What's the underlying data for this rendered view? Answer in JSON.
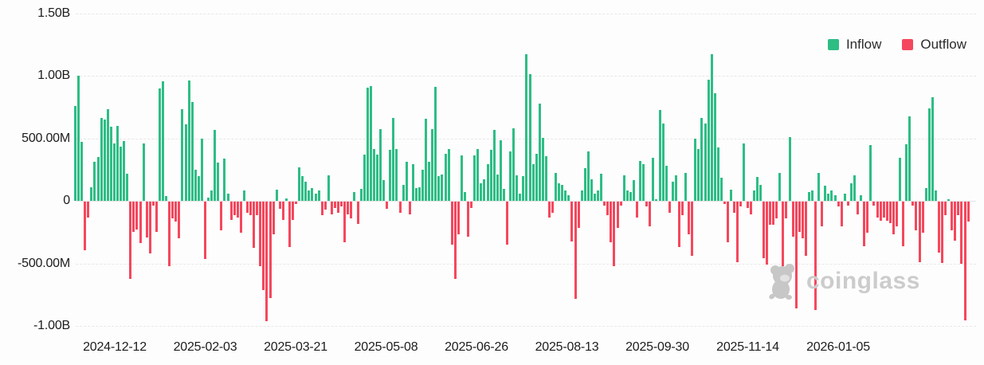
{
  "legend": {
    "items": [
      {
        "label": "Inflow",
        "color": "#2ebd85"
      },
      {
        "label": "Outflow",
        "color": "#f5475d"
      }
    ]
  },
  "watermark": {
    "text": "coinglass"
  },
  "chart_data": {
    "type": "bar",
    "title": "",
    "xlabel": "",
    "ylabel": "",
    "grid": "horizontal dashed",
    "legend_position": "top-right",
    "background": "#fdfdfd",
    "yticks": [
      {
        "label": "1.50B",
        "value": 1500
      },
      {
        "label": "1.00B",
        "value": 1000
      },
      {
        "label": "500.00M",
        "value": 500
      },
      {
        "label": "0",
        "value": 0
      },
      {
        "label": "-500.00M",
        "value": -500
      },
      {
        "label": "-1.00B",
        "value": -1000
      }
    ],
    "ylim": [
      -1050,
      1500
    ],
    "xticks": [
      "2024-12-12",
      "2025-02-03",
      "2025-03-21",
      "2025-05-08",
      "2025-06-26",
      "2025-08-13",
      "2025-09-30",
      "2025-11-14",
      "2026-01-05"
    ],
    "series": [
      {
        "name": "Inflow",
        "color": "#2ebd85",
        "rule": "positive daily values"
      },
      {
        "name": "Outflow",
        "color": "#f5475d",
        "rule": "negative daily values"
      }
    ],
    "values_unit": "USD millions (positive = Inflow, negative = Outflow), one bar per day",
    "values": [
      760,
      1000,
      470,
      -390,
      -130,
      110,
      310,
      350,
      665,
      650,
      730,
      590,
      460,
      600,
      430,
      480,
      215,
      -620,
      -245,
      -220,
      -330,
      460,
      -285,
      -415,
      -30,
      -240,
      900,
      955,
      40,
      -515,
      -135,
      -160,
      -290,
      735,
      610,
      960,
      790,
      250,
      195,
      500,
      -460,
      25,
      80,
      570,
      305,
      -230,
      335,
      55,
      -145,
      -110,
      -130,
      -250,
      80,
      -90,
      -110,
      -370,
      -110,
      -515,
      -705,
      -955,
      -770,
      -260,
      90,
      -60,
      -145,
      20,
      -365,
      -145,
      -20,
      265,
      195,
      150,
      80,
      100,
      60,
      80,
      -110,
      -65,
      205,
      -100,
      -50,
      -90,
      -40,
      -325,
      -100,
      -135,
      70,
      -180,
      95,
      370,
      905,
      915,
      415,
      370,
      575,
      165,
      -55,
      410,
      660,
      415,
      -90,
      130,
      310,
      -100,
      295,
      100,
      110,
      250,
      655,
      310,
      575,
      910,
      195,
      210,
      375,
      415,
      -345,
      -620,
      -260,
      365,
      70,
      -280,
      -50,
      365,
      415,
      140,
      175,
      290,
      405,
      570,
      210,
      485,
      95,
      -345,
      395,
      580,
      205,
      60,
      195,
      1175,
      1010,
      295,
      375,
      780,
      505,
      355,
      -130,
      -90,
      220,
      140,
      125,
      85,
      45,
      -320,
      -780,
      -210,
      85,
      260,
      395,
      175,
      55,
      80,
      215,
      -30,
      -110,
      -325,
      -515,
      -210,
      -30,
      205,
      80,
      70,
      165,
      -125,
      320,
      290,
      -40,
      -200,
      345,
      15,
      725,
      620,
      280,
      -90,
      150,
      205,
      -365,
      -110,
      225,
      -260,
      -430,
      500,
      415,
      660,
      620,
      970,
      1170,
      860,
      425,
      185,
      -20,
      -325,
      90,
      -90,
      -485,
      -40,
      460,
      -50,
      -100,
      80,
      190,
      130,
      -455,
      -505,
      -185,
      -185,
      -135,
      225,
      -515,
      -135,
      510,
      -280,
      -855,
      -240,
      -290,
      -430,
      70,
      80,
      -865,
      220,
      -200,
      120,
      55,
      80,
      45,
      -40,
      -195,
      55,
      -30,
      140,
      205,
      -100,
      45,
      -355,
      -250,
      445,
      -30,
      -125,
      -155,
      -125,
      -155,
      -175,
      -260,
      -195,
      345,
      -355,
      455,
      675,
      -30,
      -230,
      -485,
      -250,
      100,
      740,
      825,
      85,
      -410,
      -490,
      -110,
      10,
      -230,
      -315,
      -110,
      -495,
      -950,
      -160
    ]
  }
}
